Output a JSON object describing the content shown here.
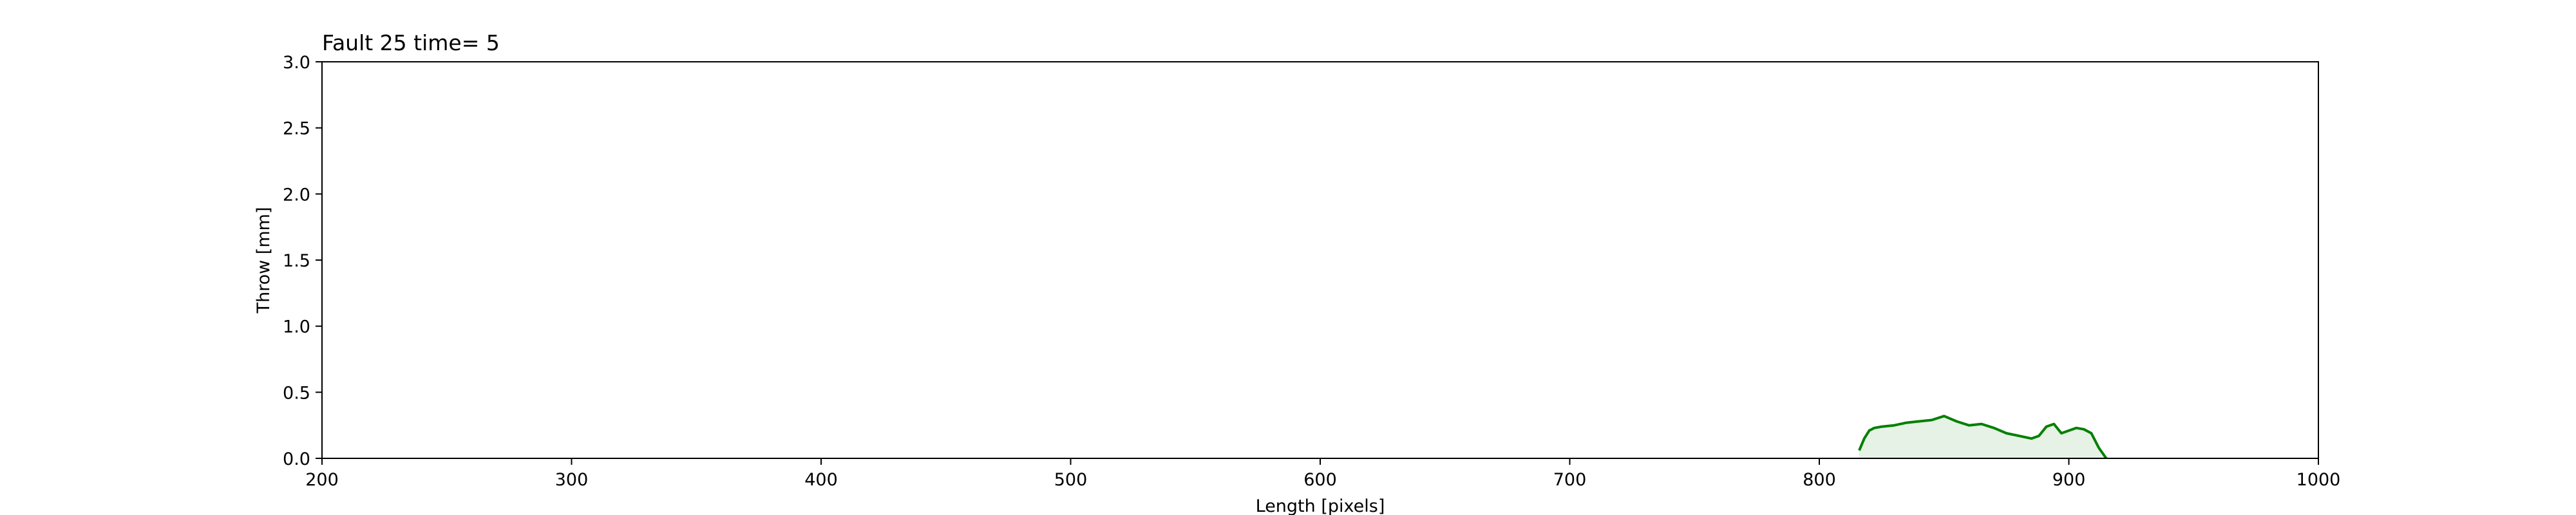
{
  "chart_data": {
    "type": "area",
    "title": "Fault 25 time= 5",
    "xlabel": "Length [pixels]",
    "ylabel": "Throw [mm]",
    "xlim": [
      200,
      1000
    ],
    "ylim": [
      0,
      3.0
    ],
    "x_ticks": [
      200,
      300,
      400,
      500,
      600,
      700,
      800,
      900,
      1000
    ],
    "y_ticks": [
      0.0,
      0.5,
      1.0,
      1.5,
      2.0,
      2.5,
      3.0
    ],
    "y_tick_labels": [
      "0.0",
      "0.5",
      "1.0",
      "1.5",
      "2.0",
      "2.5",
      "3.0"
    ],
    "grid": false,
    "series": [
      {
        "color": "#008000",
        "fill_color": "#e5f2e5",
        "x": [
          816,
          818,
          820,
          822,
          825,
          830,
          835,
          840,
          845,
          850,
          855,
          860,
          865,
          870,
          875,
          880,
          885,
          888,
          891,
          894,
          897,
          900,
          903,
          906,
          909,
          912,
          915
        ],
        "y": [
          0.06,
          0.15,
          0.21,
          0.23,
          0.24,
          0.25,
          0.27,
          0.28,
          0.29,
          0.32,
          0.28,
          0.25,
          0.26,
          0.23,
          0.19,
          0.17,
          0.15,
          0.17,
          0.24,
          0.26,
          0.19,
          0.21,
          0.23,
          0.22,
          0.19,
          0.08,
          0.0
        ]
      }
    ]
  }
}
